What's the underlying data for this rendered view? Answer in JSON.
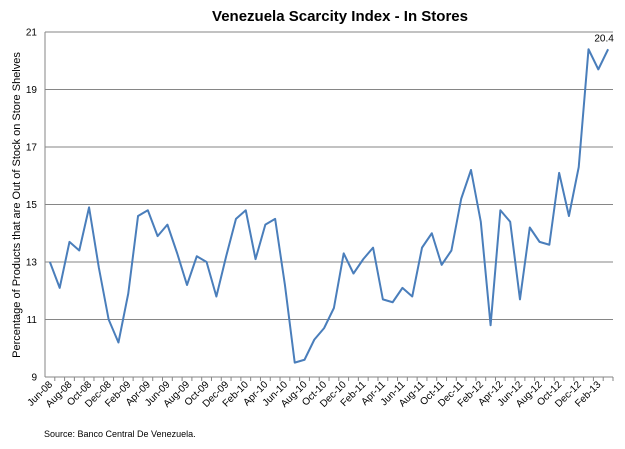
{
  "chart_data": {
    "type": "line",
    "title": "Venezuela Scarcity Index - In Stores",
    "y_label": "Percentage of Products that are Out of Stock on Store Shelves",
    "source": "Source: Banco Central De Venezuela.",
    "color": "#4a7ebb",
    "categories": [
      "Jun-08",
      null,
      "Aug-08",
      null,
      "Oct-08",
      null,
      "Dec-08",
      null,
      "Feb-09",
      null,
      "Apr-09",
      null,
      "Jun-09",
      null,
      "Aug-09",
      null,
      "Oct-09",
      null,
      "Dec-09",
      null,
      "Feb-10",
      null,
      "Apr-10",
      null,
      "Jun-10",
      null,
      "Aug-10",
      null,
      "Oct-10",
      null,
      "Dec-10",
      null,
      "Feb-11",
      null,
      "Apr-11",
      null,
      "Jun-11",
      null,
      "Aug-11",
      null,
      "Oct-11",
      null,
      "Dec-11",
      null,
      "Feb-12",
      null,
      "Apr-12",
      null,
      "Jun-12",
      null,
      "Aug-12",
      null,
      "Oct-12",
      null,
      "Dec-12",
      null,
      "Feb-13",
      null
    ],
    "values": [
      13.0,
      12.1,
      13.7,
      13.4,
      14.9,
      12.8,
      11.0,
      10.2,
      11.9,
      14.6,
      14.8,
      13.9,
      14.3,
      13.3,
      12.2,
      13.2,
      13.0,
      11.8,
      13.2,
      14.5,
      14.8,
      13.1,
      14.3,
      14.5,
      12.2,
      9.5,
      9.6,
      10.3,
      10.7,
      11.4,
      13.3,
      12.6,
      13.1,
      13.5,
      11.7,
      11.6,
      12.1,
      11.8,
      13.5,
      14.0,
      12.9,
      13.4,
      15.2,
      16.2,
      14.4,
      10.8,
      14.8,
      14.4,
      11.7,
      14.2,
      13.7,
      13.6,
      16.1,
      14.6,
      16.3,
      20.4,
      19.7,
      20.4
    ],
    "labeled_points": [
      57
    ],
    "ylim": [
      9,
      21
    ],
    "yticks": [
      9,
      11,
      13,
      15,
      17,
      19,
      21
    ],
    "grid": true
  }
}
